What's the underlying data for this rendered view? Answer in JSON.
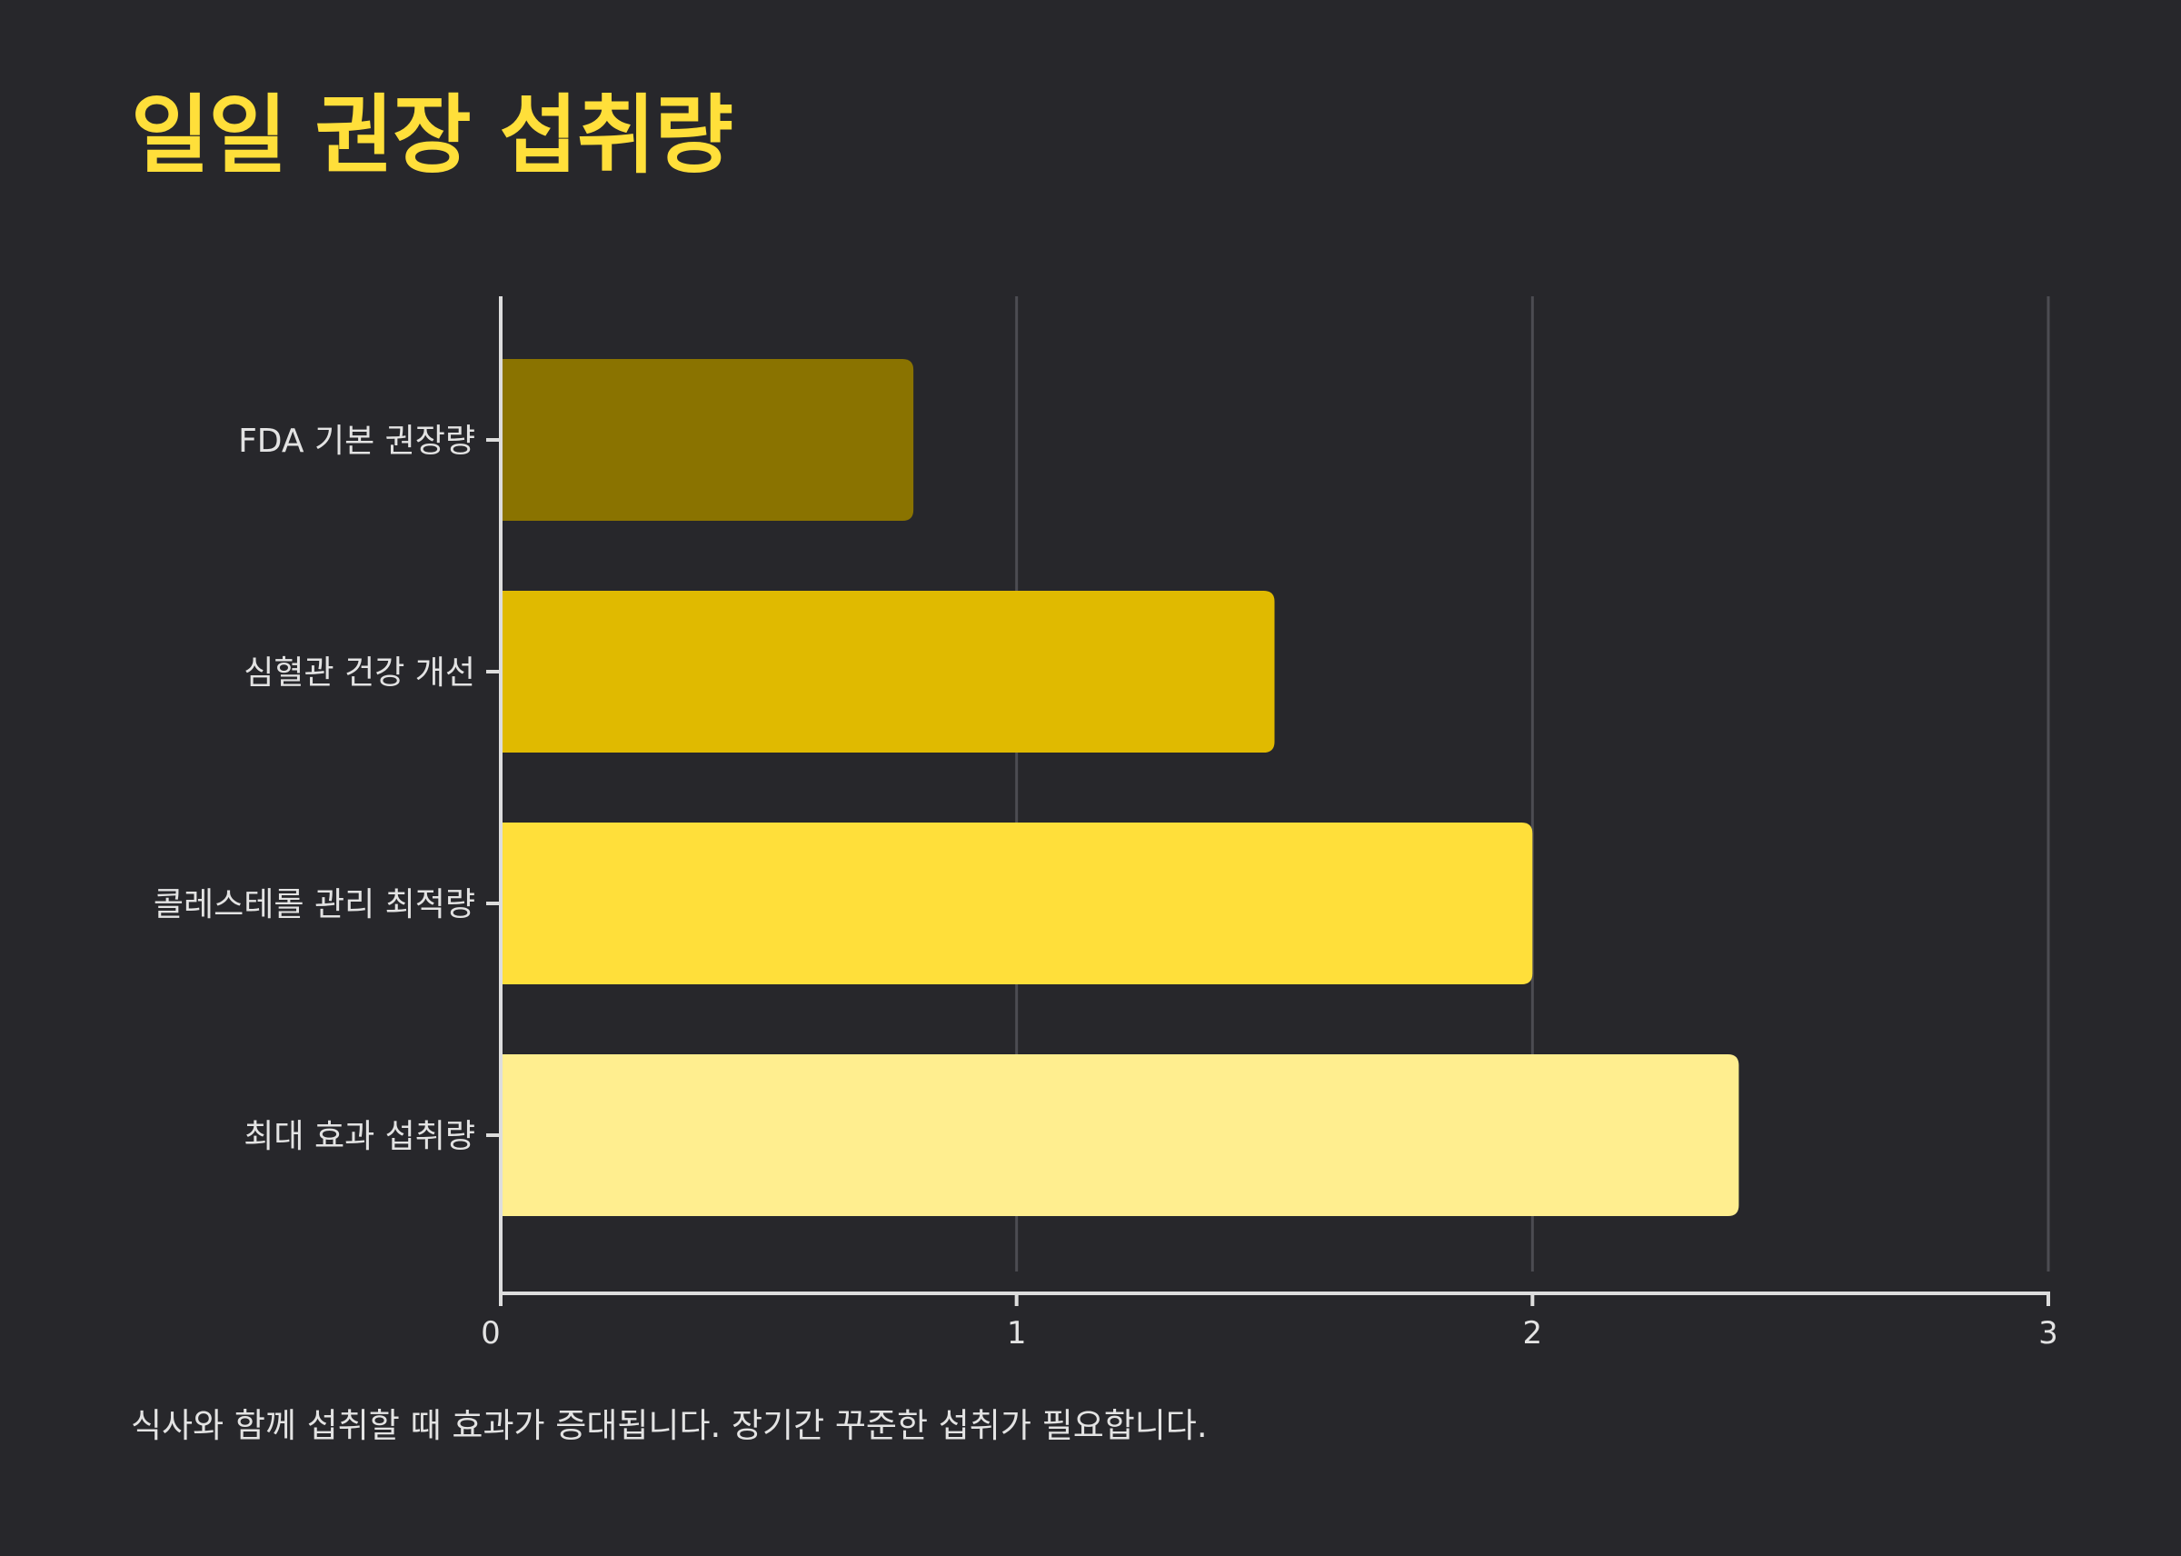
{
  "chart_data": {
    "type": "bar",
    "orientation": "horizontal",
    "title": "일일 권장 섭취량",
    "note": "식사와 함께 섭취할 때 효과가 증대됩니다. 장기간 꾸준한 섭취가 필요합니다.",
    "categories": [
      "FDA 기본 권장량",
      "심혈관 건강 개선",
      "콜레스테롤 관리 최적량",
      "최대 효과 섭취량"
    ],
    "values": [
      0.8,
      1.5,
      2.0,
      2.4
    ],
    "colors": [
      "#8a7300",
      "#e0ba00",
      "#ffdf3a",
      "#ffee8f"
    ],
    "xlim": [
      0,
      3
    ],
    "x_ticks": [
      "0",
      "1",
      "2",
      "3"
    ],
    "xlabel": "",
    "ylabel": "",
    "grid": "vertical",
    "theme": {
      "background": "#27272b",
      "title_color": "#ffdf3a",
      "text_color": "#e3e3e3",
      "axis_color": "#dddddd",
      "grid_color": "#4c4c52"
    }
  }
}
